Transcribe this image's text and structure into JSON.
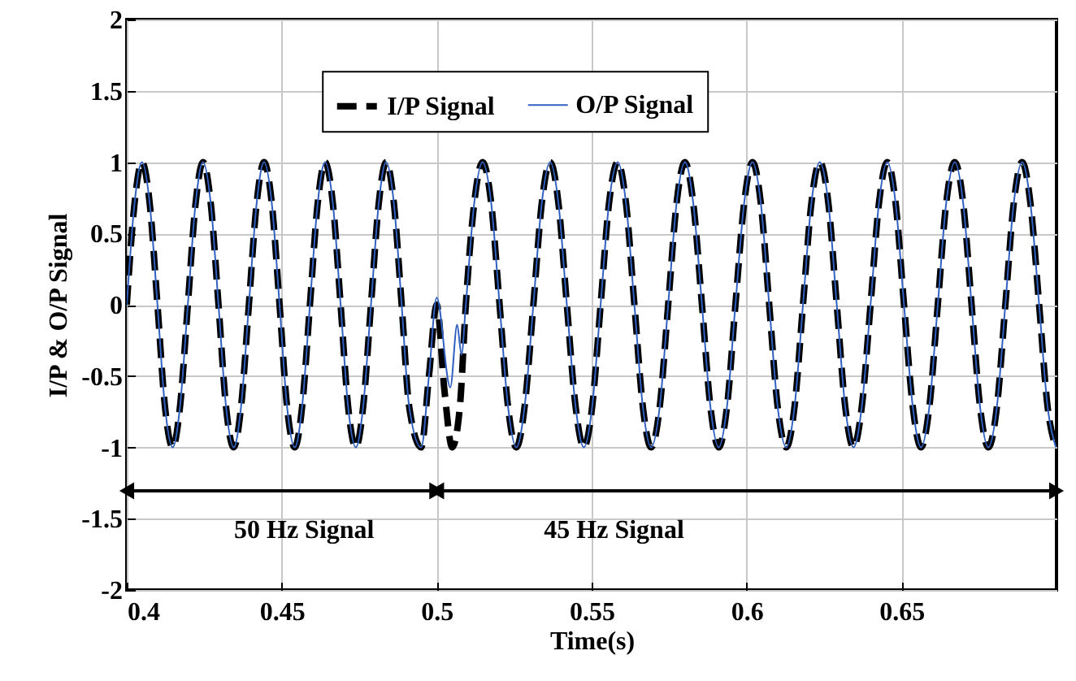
{
  "chart_data": {
    "type": "line",
    "xlabel": "Time(s)",
    "ylabel": "I/P & O/P Signal",
    "xlim": [
      0.4,
      0.7
    ],
    "xticks": [
      0.4,
      0.45,
      0.5,
      0.55,
      0.6,
      0.65
    ],
    "ylim": [
      -2,
      2
    ],
    "yticks": [
      -2,
      -1.5,
      -1,
      -0.5,
      0,
      0.5,
      1,
      1.5,
      2
    ],
    "grid": true,
    "legend": "top",
    "annotations": [
      "50 Hz Signal",
      "45 Hz Signal"
    ],
    "series": [
      {
        "name": "I/P Signal",
        "color": "#000000",
        "line_style": "dashed",
        "x": [
          0.4,
          0.4025,
          0.4049,
          0.4074,
          0.4099,
          0.4123,
          0.4148,
          0.4172,
          0.4197,
          0.4222,
          0.4246,
          0.4271,
          0.4296,
          0.432,
          0.4345,
          0.4369,
          0.4394,
          0.4419,
          0.4443,
          0.4468,
          0.4493,
          0.4517,
          0.4542,
          0.4566,
          0.4591,
          0.4616,
          0.464,
          0.4665,
          0.469,
          0.4714,
          0.4739,
          0.4763,
          0.4788,
          0.4813,
          0.4837,
          0.4862,
          0.4887,
          0.4911,
          0.495,
          0.4975,
          0.5,
          0.5025,
          0.505,
          0.5075,
          0.5094,
          0.5121,
          0.5148,
          0.5176,
          0.5203,
          0.523,
          0.5257,
          0.5284,
          0.5312,
          0.5339,
          0.5366,
          0.5393,
          0.542,
          0.5448,
          0.5475,
          0.5502,
          0.5529,
          0.5556,
          0.5584,
          0.5611,
          0.5638,
          0.5665,
          0.5692,
          0.572,
          0.5747,
          0.5774,
          0.5801,
          0.5828,
          0.5856,
          0.5883,
          0.591,
          0.5937,
          0.5964,
          0.5992,
          0.6019,
          0.6046,
          0.6073,
          0.61,
          0.6128,
          0.6155,
          0.6182,
          0.6209,
          0.6236,
          0.6264,
          0.6291,
          0.6318,
          0.6345,
          0.6372,
          0.64,
          0.6427,
          0.6454,
          0.6481,
          0.6508,
          0.6536,
          0.6563,
          0.659,
          0.6617,
          0.6644,
          0.6672,
          0.6699,
          0.6726,
          0.6753,
          0.678,
          0.6808,
          0.6835,
          0.6862,
          0.6889,
          0.6916,
          0.6944,
          0.6971,
          0.6998
        ],
        "values": [
          0,
          0.71,
          1,
          0.71,
          0,
          -0.71,
          -1,
          -0.71,
          0,
          0.71,
          1,
          0.71,
          0,
          -0.71,
          -1,
          -0.71,
          0,
          0.71,
          1,
          0.71,
          0,
          -0.71,
          -1,
          -0.71,
          0,
          0.71,
          1,
          0.71,
          0,
          -0.71,
          -1,
          -0.71,
          0,
          0.71,
          1,
          0.71,
          0,
          -0.71,
          -1,
          -0.5,
          0,
          -0.6,
          -1,
          -0.71,
          0,
          0.71,
          1,
          0.71,
          0,
          -0.71,
          -1,
          -0.71,
          0,
          0.71,
          1,
          0.71,
          0,
          -0.71,
          -1,
          -0.71,
          0,
          0.71,
          1,
          0.71,
          0,
          -0.71,
          -1,
          -0.71,
          0,
          0.71,
          1,
          0.71,
          0,
          -0.71,
          -1,
          -0.71,
          0,
          0.71,
          1,
          0.71,
          0,
          -0.71,
          -1,
          -0.71,
          0,
          0.71,
          1,
          0.71,
          0,
          -0.71,
          -1,
          -0.71,
          0,
          0.71,
          1,
          0.71,
          0,
          -0.71,
          -1,
          -0.71,
          0,
          0.71,
          1,
          0.71,
          0,
          -0.71,
          -1,
          -0.71,
          0,
          0.71,
          1,
          0.71,
          0,
          -0.71,
          -1
        ]
      },
      {
        "name": "O/P Signal",
        "color": "#3060c0",
        "line_style": "solid",
        "x": [
          0.4,
          0.4025,
          0.4049,
          0.4074,
          0.4099,
          0.4123,
          0.4148,
          0.4172,
          0.4197,
          0.4222,
          0.4246,
          0.4271,
          0.4296,
          0.432,
          0.4345,
          0.4369,
          0.4394,
          0.4419,
          0.4443,
          0.4468,
          0.4493,
          0.4517,
          0.4542,
          0.4566,
          0.4591,
          0.4616,
          0.464,
          0.4665,
          0.469,
          0.4714,
          0.4739,
          0.4763,
          0.4788,
          0.4813,
          0.4837,
          0.4862,
          0.4887,
          0.4911,
          0.495,
          0.4975,
          0.5,
          0.5044,
          0.5066,
          0.508,
          0.5094,
          0.5121,
          0.5148,
          0.5176,
          0.5203,
          0.523,
          0.5257,
          0.5284,
          0.5312,
          0.5339,
          0.5366,
          0.5393,
          0.542,
          0.5448,
          0.5475,
          0.5502,
          0.5529,
          0.5556,
          0.5584,
          0.5611,
          0.5638,
          0.5665,
          0.5692,
          0.572,
          0.5747,
          0.5774,
          0.5801,
          0.5828,
          0.5856,
          0.5883,
          0.591,
          0.5937,
          0.5964,
          0.5992,
          0.6019,
          0.6046,
          0.6073,
          0.61,
          0.6128,
          0.6155,
          0.6182,
          0.6209,
          0.6236,
          0.6264,
          0.6291,
          0.6318,
          0.6345,
          0.6372,
          0.64,
          0.6427,
          0.6454,
          0.6481,
          0.6508,
          0.6536,
          0.6563,
          0.659,
          0.6617,
          0.6644,
          0.6672,
          0.6699,
          0.6726,
          0.6753,
          0.678,
          0.6808,
          0.6835,
          0.6862,
          0.6889,
          0.6916,
          0.6944,
          0.6971,
          0.6998
        ],
        "values": [
          0,
          0.71,
          1,
          0.71,
          0,
          -0.71,
          -1,
          -0.71,
          0,
          0.71,
          1,
          0.71,
          0,
          -0.71,
          -1,
          -0.71,
          0,
          0.71,
          1,
          0.71,
          0,
          -0.71,
          -1,
          -0.71,
          0,
          0.71,
          1,
          0.71,
          0,
          -0.71,
          -1,
          -0.71,
          0,
          0.71,
          1,
          0.71,
          0,
          -0.71,
          -1,
          -0.5,
          0.05,
          -0.58,
          -0.14,
          -0.35,
          0,
          0.71,
          1,
          0.71,
          0,
          -0.71,
          -1,
          -0.71,
          0,
          0.71,
          1,
          0.71,
          0,
          -0.71,
          -1,
          -0.71,
          0,
          0.71,
          1,
          0.71,
          0,
          -0.71,
          -1,
          -0.71,
          0,
          0.71,
          1,
          0.71,
          0,
          -0.71,
          -1,
          -0.71,
          0,
          0.71,
          1,
          0.71,
          0,
          -0.71,
          -1,
          -0.71,
          0,
          0.71,
          1,
          0.71,
          0,
          -0.71,
          -1,
          -0.71,
          0,
          0.71,
          1,
          0.71,
          0,
          -0.71,
          -1,
          -0.71,
          0,
          0.71,
          1,
          0.71,
          0,
          -0.71,
          -1,
          -0.71,
          0,
          0.71,
          1,
          0.71,
          0,
          -0.71,
          -1
        ]
      }
    ]
  }
}
